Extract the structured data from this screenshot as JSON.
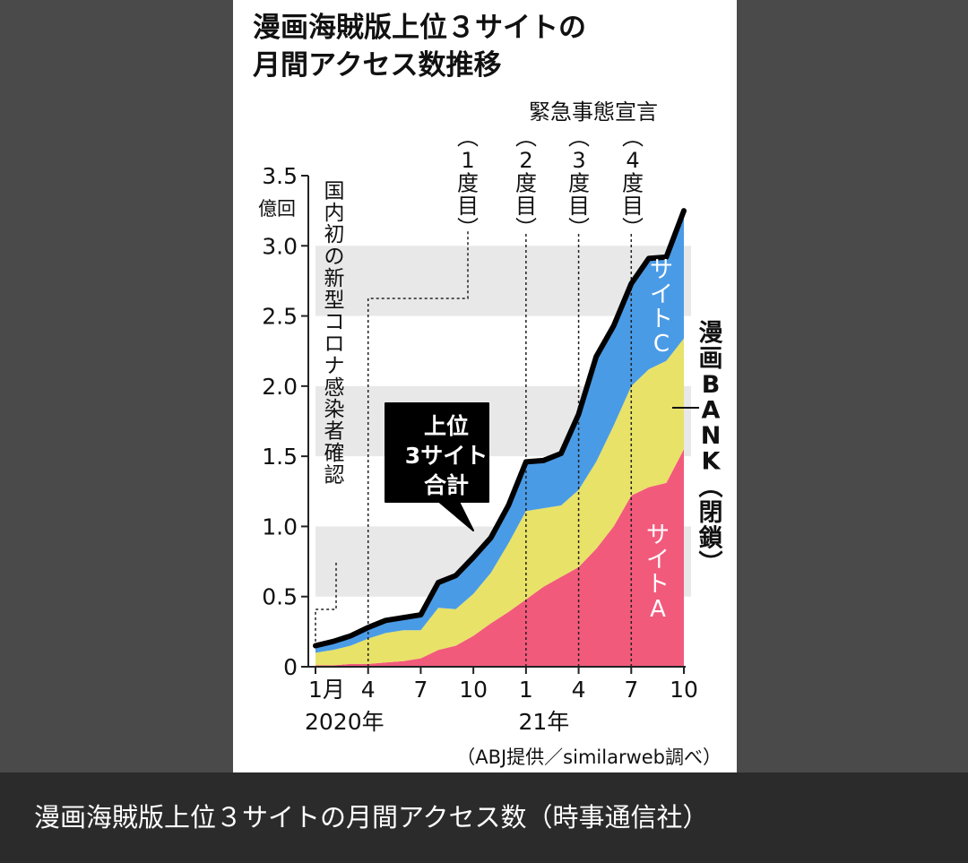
{
  "chart_data": {
    "type": "area",
    "title_line1": "漫画海賊版上位３サイトの",
    "title_line2": "月間アクセス数推移",
    "ylabel_unit": "億回",
    "ylim": [
      0,
      3.5
    ],
    "yticks": [
      {
        "v": 0,
        "label": "0"
      },
      {
        "v": 0.5,
        "label": "0.5"
      },
      {
        "v": 1.0,
        "label": "1.0"
      },
      {
        "v": 1.5,
        "label": "1.5"
      },
      {
        "v": 2.0,
        "label": "2.0"
      },
      {
        "v": 2.5,
        "label": "2.5"
      },
      {
        "v": 3.0,
        "label": "3.0"
      },
      {
        "v": 3.5,
        "label": "3.5"
      }
    ],
    "xticks": [
      {
        "i": 0,
        "label": "1月"
      },
      {
        "i": 3,
        "label": "4"
      },
      {
        "i": 6,
        "label": "7"
      },
      {
        "i": 9,
        "label": "10"
      },
      {
        "i": 12,
        "label": "1"
      },
      {
        "i": 15,
        "label": "4"
      },
      {
        "i": 18,
        "label": "7"
      },
      {
        "i": 21,
        "label": "10"
      }
    ],
    "year_labels": [
      {
        "i": 0,
        "label": "2020年"
      },
      {
        "i": 12,
        "label": "21年"
      }
    ],
    "x": [
      "2020-01",
      "2020-02",
      "2020-03",
      "2020-04",
      "2020-05",
      "2020-06",
      "2020-07",
      "2020-08",
      "2020-09",
      "2020-10",
      "2020-11",
      "2020-12",
      "2021-01",
      "2021-02",
      "2021-03",
      "2021-04",
      "2021-05",
      "2021-06",
      "2021-07",
      "2021-08",
      "2021-09",
      "2021-10"
    ],
    "series": [
      {
        "name": "サイトA",
        "color": "#f25a7c",
        "values": [
          0.01,
          0.01,
          0.02,
          0.02,
          0.03,
          0.04,
          0.06,
          0.12,
          0.15,
          0.22,
          0.31,
          0.39,
          0.48,
          0.57,
          0.64,
          0.71,
          0.84,
          1.0,
          1.22,
          1.28,
          1.31,
          1.55
        ]
      },
      {
        "name": "漫画BANK（閉鎖）",
        "color": "#e8e268",
        "values": [
          0.09,
          0.11,
          0.13,
          0.18,
          0.21,
          0.22,
          0.2,
          0.3,
          0.26,
          0.3,
          0.36,
          0.49,
          0.63,
          0.56,
          0.51,
          0.55,
          0.62,
          0.72,
          0.78,
          0.84,
          0.87,
          0.79
        ]
      },
      {
        "name": "サイトC",
        "color": "#4a9be6",
        "values": [
          0.05,
          0.06,
          0.07,
          0.08,
          0.09,
          0.09,
          0.11,
          0.18,
          0.24,
          0.26,
          0.25,
          0.27,
          0.35,
          0.34,
          0.37,
          0.54,
          0.75,
          0.71,
          0.73,
          0.79,
          0.74,
          0.91
        ]
      }
    ],
    "total": {
      "name": "上位3サイト合計",
      "values": [
        0.15,
        0.18,
        0.22,
        0.28,
        0.33,
        0.35,
        0.37,
        0.6,
        0.65,
        0.78,
        0.92,
        1.15,
        1.46,
        1.47,
        1.52,
        1.8,
        2.21,
        2.43,
        2.73,
        2.91,
        2.92,
        3.25
      ]
    },
    "band_label_site_c": "サイトC",
    "band_label_site_a": "サイトA",
    "band_label_bank": "漫画BANK（閉鎖）",
    "total_callout": [
      "上位",
      "3サイト",
      "合計"
    ],
    "annotation_covid": "国内初の新型コロナ感染者確認",
    "annotation_emergency_title": "緊急事態宣言",
    "emergency_declarations": [
      {
        "i": 3,
        "label": "〔1度目〕"
      },
      {
        "i": 12,
        "label": "〔2度目〕"
      },
      {
        "i": 15,
        "label": "〔3度目〕"
      },
      {
        "i": 18,
        "label": "〔4度目〕"
      }
    ],
    "covid_index": 0,
    "source": "（ABJ提供／similarweb調べ）",
    "colors": {
      "line": "#000000",
      "stripe": "#e8e8e8",
      "axis": "#222222"
    }
  },
  "caption": "漫画海賊版上位３サイトの月間アクセス数（時事通信社）"
}
